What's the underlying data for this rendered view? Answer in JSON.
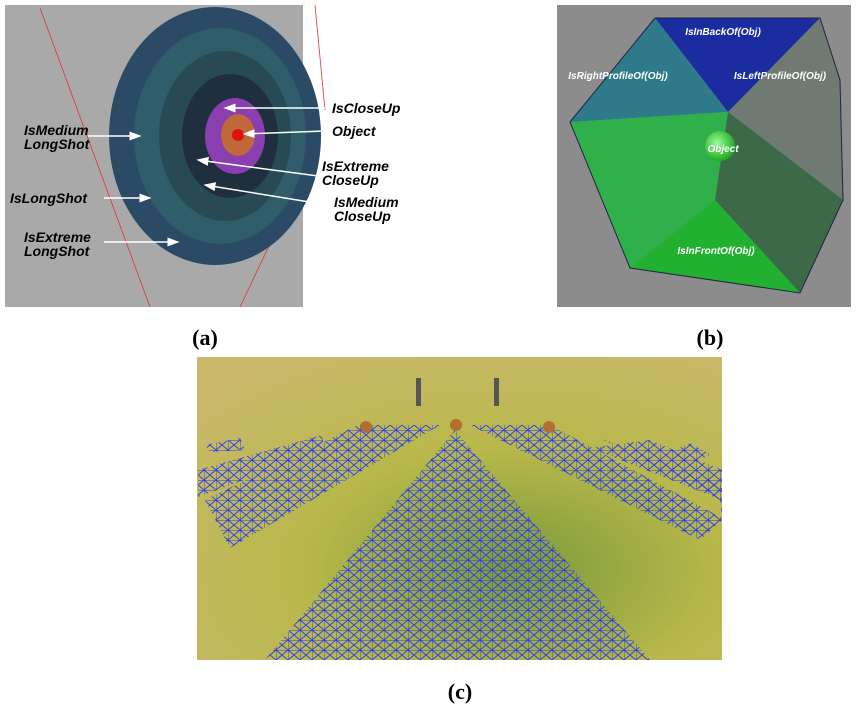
{
  "panel_a": {
    "caption": "(a)",
    "labels": [
      [
        "IsCloseUp"
      ],
      [
        "Object"
      ],
      [
        "IsExtreme",
        "CloseUp"
      ],
      [
        "IsMedium",
        "CloseUp"
      ],
      [
        "IsMedium",
        "LongShot"
      ],
      [
        "IsLongShot"
      ],
      [
        "IsExtreme",
        "LongShot"
      ]
    ]
  },
  "panel_b": {
    "caption": "(b)",
    "labels": [
      "IsInBackOf(Obj)",
      "IsRightProfileOf(Obj)",
      "IsLeftProfileOf(Obj)",
      "Object",
      "IsInFrontOf(Obj)"
    ]
  },
  "panel_c": {
    "caption": "(c)"
  }
}
